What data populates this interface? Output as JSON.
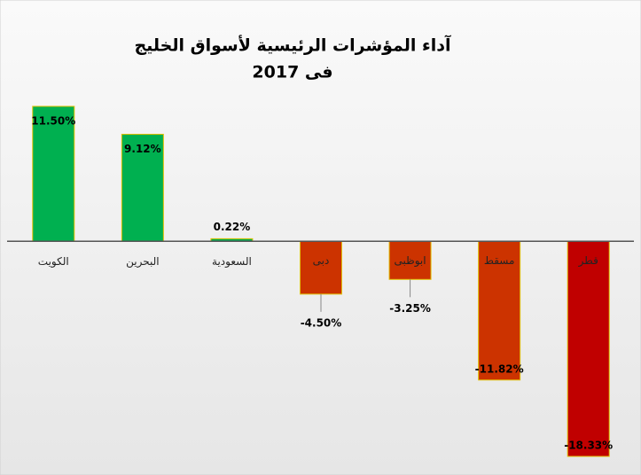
{
  "chart_data": {
    "type": "bar",
    "title": "آداء المؤشرات الرئيسية لأسواق الخليج",
    "subtitle": "فى 2017",
    "categories": [
      "الكويت",
      "البحرين",
      "السعودية",
      "دبى",
      "ابوظبى",
      "مسقط",
      "قطر"
    ],
    "values": [
      11.5,
      9.12,
      0.22,
      -4.5,
      -3.25,
      -11.82,
      -18.33
    ],
    "value_labels": [
      "11.50%",
      "9.12%",
      "0.22%",
      "-4.50%",
      "-3.25%",
      "-11.82%",
      "-18.33%"
    ],
    "colors": [
      "#00b050",
      "#00b050",
      "#00b050",
      "#cc3300",
      "#cc3300",
      "#cc3300",
      "#c00000"
    ],
    "grid": false
  }
}
